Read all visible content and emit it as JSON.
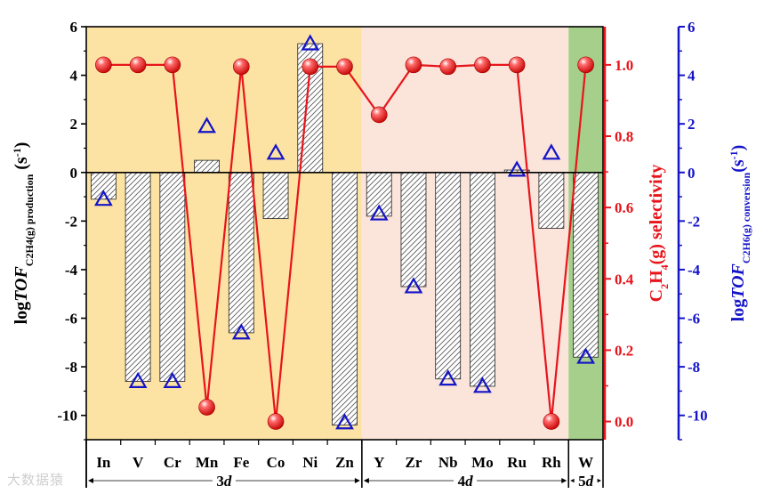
{
  "chart_data": {
    "type": "bar",
    "categories": [
      "In",
      "V",
      "Cr",
      "Mn",
      "Fe",
      "Co",
      "Ni",
      "Zn",
      "Y",
      "Zr",
      "Nb",
      "Mo",
      "Ru",
      "Rh",
      "W"
    ],
    "series": [
      {
        "name": "log TOF C2H4(g) production",
        "type": "bar",
        "axis": "left",
        "values": [
          -1.1,
          -8.6,
          -8.6,
          0.5,
          -6.6,
          -1.9,
          5.3,
          -10.4,
          -1.8,
          -4.7,
          -8.5,
          -8.8,
          0.1,
          -2.3,
          -7.6
        ]
      },
      {
        "name": "C2H4(g) selectivity",
        "type": "line",
        "axis": "right-red",
        "color": "#e8141b",
        "values": [
          1.0,
          1.0,
          1.0,
          0.04,
          0.995,
          0.0,
          0.995,
          0.995,
          0.86,
          1.0,
          0.995,
          1.0,
          1.0,
          0.0,
          1.0
        ]
      },
      {
        "name": "log TOF C2H6(g) conversion",
        "type": "scatter",
        "axis": "right-blue",
        "color": "#1414c8",
        "values": [
          -1.1,
          -8.6,
          -8.6,
          1.9,
          -6.6,
          0.8,
          5.3,
          -10.3,
          -1.7,
          -4.7,
          -8.5,
          -8.8,
          0.1,
          0.8,
          -7.6
        ]
      }
    ],
    "groups": [
      {
        "label": "3d",
        "start": "In",
        "end": "Zn",
        "color": "#fde3a3"
      },
      {
        "label": "4d",
        "start": "Y",
        "end": "Rh",
        "color": "#fbe4d9"
      },
      {
        "label": "5d",
        "start": "W",
        "end": "W",
        "color": "#a5cf8a"
      }
    ],
    "ylim_left": [
      -11,
      6
    ],
    "yticks_left": [
      "6",
      "4",
      "2",
      "0",
      "-2",
      "-4",
      "-6",
      "-8",
      "-10"
    ],
    "ylim_right_red": [
      -0.051,
      1.107
    ],
    "yticks_right_red": [
      "1.0",
      "0.8",
      "0.6",
      "0.4",
      "0.2",
      "0.0"
    ],
    "ylim_right_blue": [
      -11,
      6
    ],
    "yticks_right_blue": [
      "6",
      "4",
      "2",
      "0",
      "-2",
      "-4",
      "-6",
      "-8",
      "-10"
    ],
    "ylabel_left": {
      "prefix": "log",
      "italic": "TOF",
      "sub": "C",
      "sub2": "2",
      "sub3": "H",
      "sub4": "4",
      "sub5": "(g) production",
      "unit": " (s",
      "sup": "-1",
      "close": ")"
    },
    "ylabel_right_red": {
      "main": "C",
      "sub": "2",
      "mid": "H",
      "sub2": "4",
      "end": "(g) selectivity"
    },
    "ylabel_right_blue": {
      "prefix": "log",
      "italic": "TOF",
      "sub": "C",
      "sub2": "2",
      "sub3": "H",
      "sub4": "6",
      "sub5": "(g) conversion",
      "unit": "(s",
      "sup": "-1",
      "close": ")"
    },
    "grid": false
  },
  "watermark": "大数据猿"
}
